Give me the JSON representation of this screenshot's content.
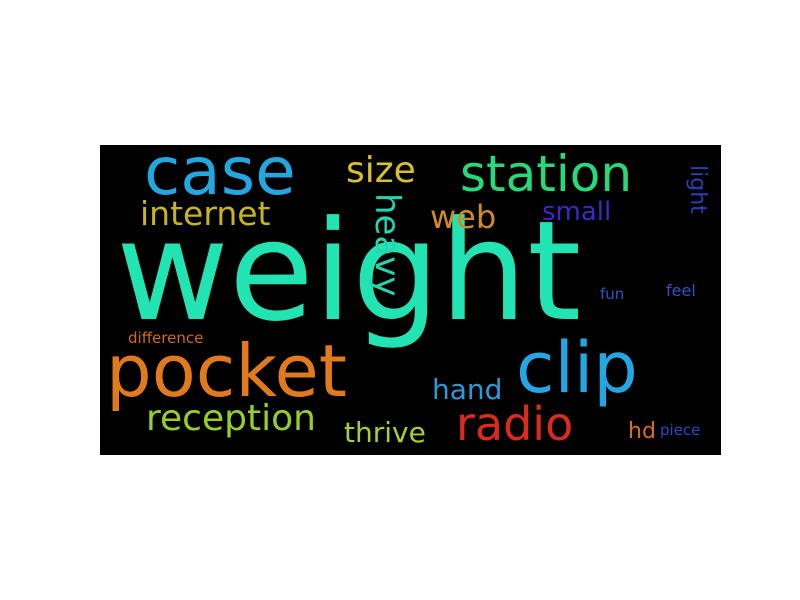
{
  "wordcloud": {
    "background": "#000000",
    "words": [
      {
        "text": "weight",
        "color": "#22e3b2"
      },
      {
        "text": "case",
        "color": "#22a7e0"
      },
      {
        "text": "station",
        "color": "#25d97c"
      },
      {
        "text": "size",
        "color": "#d8c02a"
      },
      {
        "text": "internet",
        "color": "#c6b51e"
      },
      {
        "text": "web",
        "color": "#d28a25"
      },
      {
        "text": "heavy",
        "color": "#22d6b0"
      },
      {
        "text": "small",
        "color": "#4326c9"
      },
      {
        "text": "light",
        "color": "#2a3fb8"
      },
      {
        "text": "pocket",
        "color": "#e07a1c"
      },
      {
        "text": "clip",
        "color": "#24a6e3"
      },
      {
        "text": "difference",
        "color": "#d06a16"
      },
      {
        "text": "fun",
        "color": "#2457c7"
      },
      {
        "text": "feel",
        "color": "#2d54c9"
      },
      {
        "text": "hand",
        "color": "#2c9ad8"
      },
      {
        "text": "reception",
        "color": "#96cf2a"
      },
      {
        "text": "thrive",
        "color": "#a6cf30"
      },
      {
        "text": "radio",
        "color": "#dc2a1e"
      },
      {
        "text": "hd",
        "color": "#d6701a"
      },
      {
        "text": "piece",
        "color": "#264bc8"
      }
    ]
  }
}
